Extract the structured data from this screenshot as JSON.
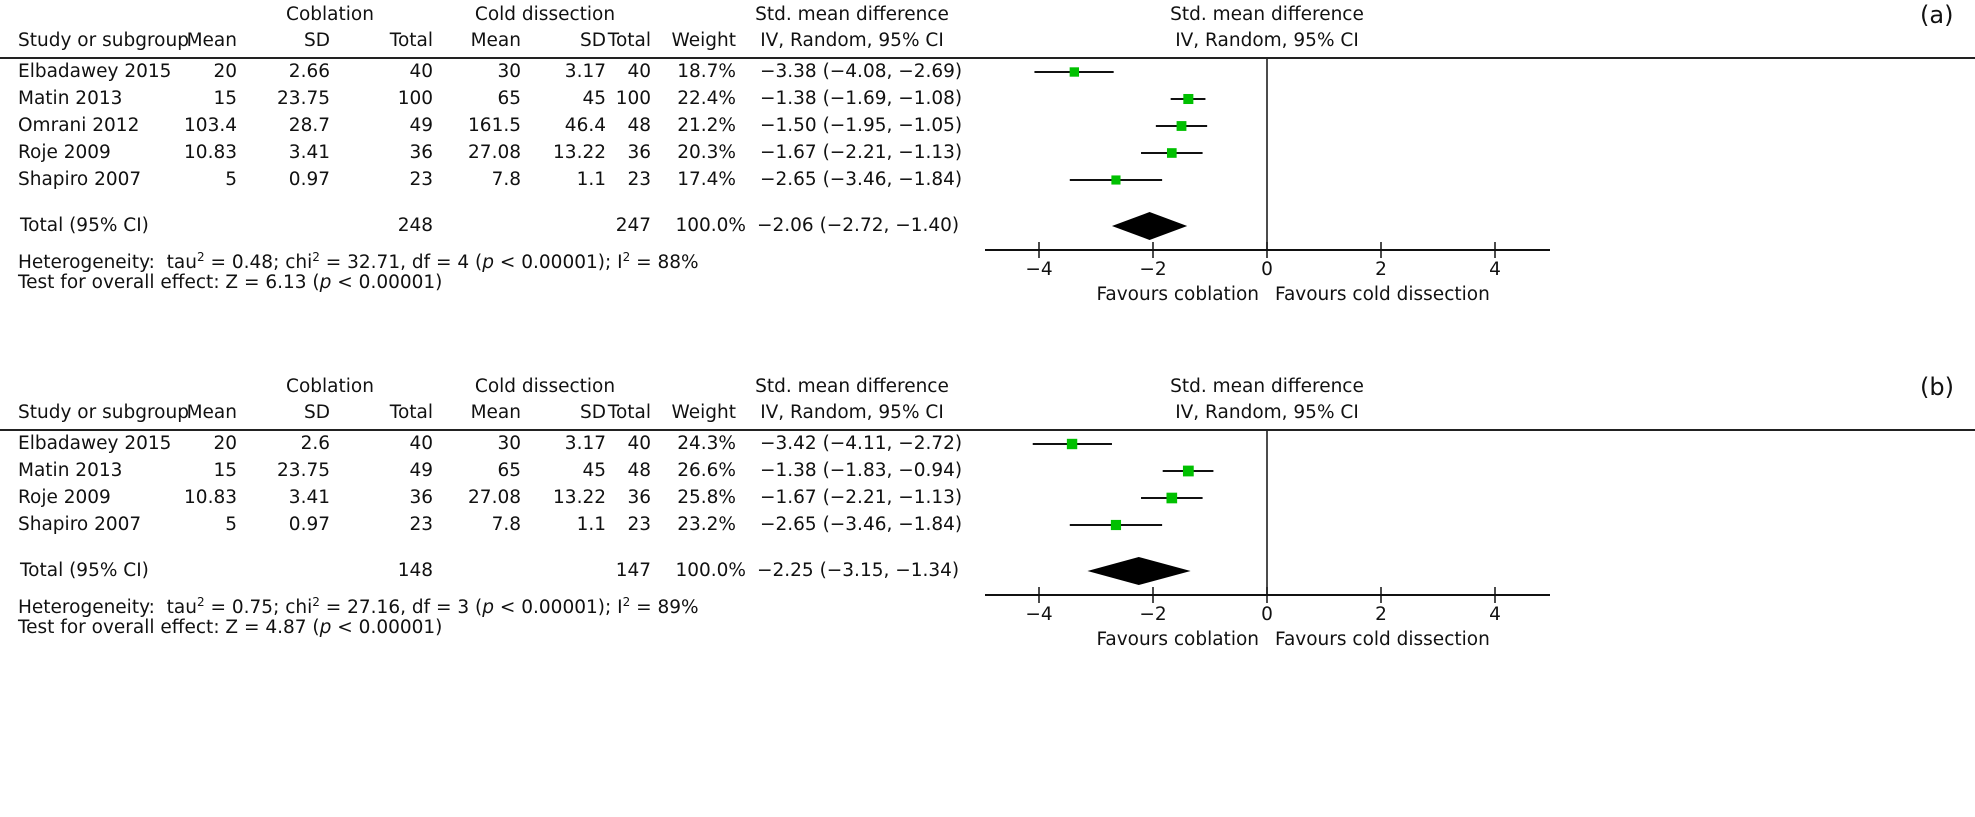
{
  "chart_data": [
    {
      "type": "forest",
      "panel_label": "(a)",
      "group_headers": {
        "experimental": "Coblation",
        "control": "Cold dissection",
        "effect": "Std. mean difference",
        "plot": "Std. mean difference"
      },
      "column_headers": [
        "Study or subgroup",
        "Mean",
        "SD",
        "Total",
        "Mean",
        "SD",
        "Total",
        "Weight",
        "IV, Random, 95% CI"
      ],
      "plot_subheader": "IV, Random, 95% CI",
      "studies": [
        {
          "name": "Elbadawey 2015",
          "exp_mean": "20",
          "exp_sd": "2.66",
          "exp_total": "40",
          "ctl_mean": "30",
          "ctl_sd": "3.17",
          "ctl_total": "40",
          "weight": "18.7%",
          "effect_text": "−3.38 (−4.08, −2.69)",
          "est": -3.38,
          "lo": -4.08,
          "hi": -2.69,
          "w": 18.7
        },
        {
          "name": "Matin 2013",
          "exp_mean": "15",
          "exp_sd": "23.75",
          "exp_total": "100",
          "ctl_mean": "65",
          "ctl_sd": "45",
          "ctl_total": "100",
          "weight": "22.4%",
          "effect_text": "−1.38 (−1.69, −1.08)",
          "est": -1.38,
          "lo": -1.69,
          "hi": -1.08,
          "w": 22.4
        },
        {
          "name": "Omrani 2012",
          "exp_mean": "103.4",
          "exp_sd": "28.7",
          "exp_total": "49",
          "ctl_mean": "161.5",
          "ctl_sd": "46.4",
          "ctl_total": "48",
          "weight": "21.2%",
          "effect_text": "−1.50 (−1.95, −1.05)",
          "est": -1.5,
          "lo": -1.95,
          "hi": -1.05,
          "w": 21.2
        },
        {
          "name": "Roje 2009",
          "exp_mean": "10.83",
          "exp_sd": "3.41",
          "exp_total": "36",
          "ctl_mean": "27.08",
          "ctl_sd": "13.22",
          "ctl_total": "36",
          "weight": "20.3%",
          "effect_text": "−1.67 (−2.21, −1.13)",
          "est": -1.67,
          "lo": -2.21,
          "hi": -1.13,
          "w": 20.3
        },
        {
          "name": "Shapiro 2007",
          "exp_mean": "5",
          "exp_sd": "0.97",
          "exp_total": "23",
          "ctl_mean": "7.8",
          "ctl_sd": "1.1",
          "ctl_total": "23",
          "weight": "17.4%",
          "effect_text": "−2.65 (−3.46, −1.84)",
          "est": -2.65,
          "lo": -3.46,
          "hi": -1.84,
          "w": 17.4
        }
      ],
      "total": {
        "name": "Total (95% CI)",
        "exp_total": "248",
        "ctl_total": "247",
        "weight": "100.0%",
        "effect_text": "−2.06 (−2.72, −1.40)",
        "est": -2.06,
        "lo": -2.72,
        "hi": -1.4
      },
      "heterogeneity": [
        {
          "t": "Heterogeneity:  tau"
        },
        {
          "sup": "2"
        },
        {
          "t": " = 0.48; chi"
        },
        {
          "sup": "2"
        },
        {
          "t": " = 32.71, df = 4 ("
        },
        {
          "i": "p"
        },
        {
          "t": " < 0.00001); I"
        },
        {
          "sup": "2"
        },
        {
          "t": " = 88%"
        }
      ],
      "overall_test": [
        {
          "t": "Test for overall effect: Z = 6.13 ("
        },
        {
          "i": "p"
        },
        {
          "t": " < 0.00001)"
        }
      ],
      "xlim": [
        -5,
        5
      ],
      "xticks": [
        -4,
        -2,
        0,
        2,
        4
      ],
      "xtick_labels": [
        "−4",
        "−2",
        "0",
        "2",
        "4"
      ],
      "favours_left": "Favours coblation",
      "favours_right": "Favours cold dissection"
    },
    {
      "type": "forest",
      "panel_label": "(b)",
      "group_headers": {
        "experimental": "Coblation",
        "control": "Cold dissection",
        "effect": "Std. mean difference",
        "plot": "Std. mean difference"
      },
      "column_headers": [
        "Study or subgroup",
        "Mean",
        "SD",
        "Total",
        "Mean",
        "SD",
        "Total",
        "Weight",
        "IV, Random, 95% CI"
      ],
      "plot_subheader": "IV, Random, 95% CI",
      "studies": [
        {
          "name": "Elbadawey 2015",
          "exp_mean": "20",
          "exp_sd": "2.6",
          "exp_total": "40",
          "ctl_mean": "30",
          "ctl_sd": "3.17",
          "ctl_total": "40",
          "weight": "24.3%",
          "effect_text": "−3.42 (−4.11, −2.72)",
          "est": -3.42,
          "lo": -4.11,
          "hi": -2.72,
          "w": 24.3
        },
        {
          "name": "Matin 2013",
          "exp_mean": "15",
          "exp_sd": "23.75",
          "exp_total": "49",
          "ctl_mean": "65",
          "ctl_sd": "45",
          "ctl_total": "48",
          "weight": "26.6%",
          "effect_text": "−1.38 (−1.83, −0.94)",
          "est": -1.38,
          "lo": -1.83,
          "hi": -0.94,
          "w": 26.6
        },
        {
          "name": "Roje 2009",
          "exp_mean": "10.83",
          "exp_sd": "3.41",
          "exp_total": "36",
          "ctl_mean": "27.08",
          "ctl_sd": "13.22",
          "ctl_total": "36",
          "weight": "25.8%",
          "effect_text": "−1.67 (−2.21, −1.13)",
          "est": -1.67,
          "lo": -2.21,
          "hi": -1.13,
          "w": 25.8
        },
        {
          "name": "Shapiro 2007",
          "exp_mean": "5",
          "exp_sd": "0.97",
          "exp_total": "23",
          "ctl_mean": "7.8",
          "ctl_sd": "1.1",
          "ctl_total": "23",
          "weight": "23.2%",
          "effect_text": "−2.65 (−3.46, −1.84)",
          "est": -2.65,
          "lo": -3.46,
          "hi": -1.84,
          "w": 23.2
        }
      ],
      "total": {
        "name": "Total (95% CI)",
        "exp_total": "148",
        "ctl_total": "147",
        "weight": "100.0%",
        "effect_text": "−2.25 (−3.15, −1.34)",
        "est": -2.25,
        "lo": -3.15,
        "hi": -1.34
      },
      "heterogeneity": [
        {
          "t": "Heterogeneity:  tau"
        },
        {
          "sup": "2"
        },
        {
          "t": " = 0.75; chi"
        },
        {
          "sup": "2"
        },
        {
          "t": " = 27.16, df = 3 ("
        },
        {
          "i": "p"
        },
        {
          "t": " < 0.00001); I"
        },
        {
          "sup": "2"
        },
        {
          "t": " = 89%"
        }
      ],
      "overall_test": [
        {
          "t": "Test for overall effect: Z = 4.87 ("
        },
        {
          "i": "p"
        },
        {
          "t": " < 0.00001)"
        }
      ],
      "xlim": [
        -5,
        5
      ],
      "xticks": [
        -4,
        -2,
        0,
        2,
        4
      ],
      "xtick_labels": [
        "−4",
        "−2",
        "0",
        "2",
        "4"
      ],
      "favours_left": "Favours coblation",
      "favours_right": "Favours cold dissection"
    }
  ],
  "colors": {
    "marker": "#00c000",
    "text": "#111111",
    "diamond": "#000000"
  }
}
